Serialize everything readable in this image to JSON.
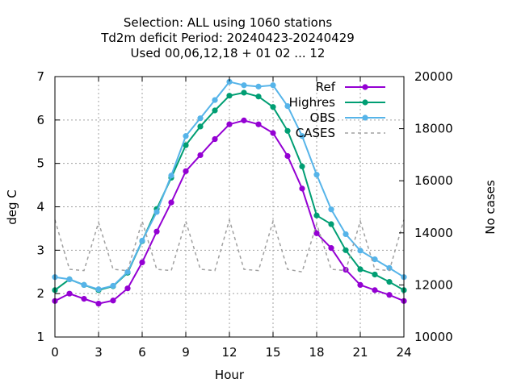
{
  "chart_data": {
    "type": "line",
    "title_lines": [
      "Selection: ALL using  1060 stations",
      "Td2m deficit   Period: 20240423-20240429",
      "Used  00,06,12,18 + 01 02 ... 12"
    ],
    "xlabel": "Hour",
    "ylabel": "deg C",
    "y2label": "No cases",
    "xlim": [
      0,
      24
    ],
    "ylim": [
      1,
      7
    ],
    "y2lim": [
      10000,
      20000
    ],
    "xticks": [
      0,
      3,
      6,
      9,
      12,
      15,
      18,
      21,
      24
    ],
    "yticks": [
      1,
      2,
      3,
      4,
      5,
      6,
      7
    ],
    "y2ticks": [
      10000,
      12000,
      14000,
      16000,
      18000,
      20000
    ],
    "grid": true,
    "legend_position": "top-right",
    "x": [
      0,
      1,
      2,
      3,
      4,
      5,
      6,
      7,
      8,
      9,
      10,
      11,
      12,
      13,
      14,
      15,
      16,
      17,
      18,
      19,
      20,
      21,
      22,
      23,
      24
    ],
    "series": [
      {
        "name": "Ref",
        "color": "#9400d3",
        "marker": "circle",
        "values": [
          1.83,
          2.0,
          1.88,
          1.77,
          1.84,
          2.12,
          2.72,
          3.43,
          4.1,
          4.82,
          5.19,
          5.56,
          5.9,
          5.99,
          5.9,
          5.7,
          5.17,
          4.42,
          3.39,
          3.05,
          2.55,
          2.2,
          2.08,
          1.97,
          1.83
        ]
      },
      {
        "name": "Highres",
        "color": "#009e73",
        "marker": "circle",
        "values": [
          2.08,
          2.33,
          2.2,
          2.08,
          2.17,
          2.48,
          3.21,
          3.95,
          4.67,
          5.42,
          5.85,
          6.22,
          6.56,
          6.63,
          6.54,
          6.3,
          5.75,
          4.93,
          3.8,
          3.6,
          3.0,
          2.56,
          2.44,
          2.27,
          2.08
        ]
      },
      {
        "name": "OBS",
        "color": "#56b4e9",
        "marker": "circle",
        "values": [
          2.38,
          2.33,
          2.2,
          2.1,
          2.18,
          2.5,
          3.22,
          3.88,
          4.72,
          5.63,
          6.04,
          6.46,
          6.88,
          6.8,
          6.77,
          6.8,
          6.32,
          5.63,
          4.74,
          3.94,
          3.37,
          2.99,
          2.79,
          2.59,
          2.38
        ]
      },
      {
        "name": "CASES",
        "color": "#a0a0a0",
        "axis": "y2",
        "dashed": true,
        "values": [
          14500,
          12600,
          12550,
          14400,
          12600,
          12550,
          14450,
          12600,
          12550,
          14450,
          12600,
          12550,
          14500,
          12600,
          12550,
          14450,
          12600,
          12500,
          14350,
          12600,
          12550,
          14450,
          12600,
          12550,
          14500
        ]
      }
    ]
  }
}
